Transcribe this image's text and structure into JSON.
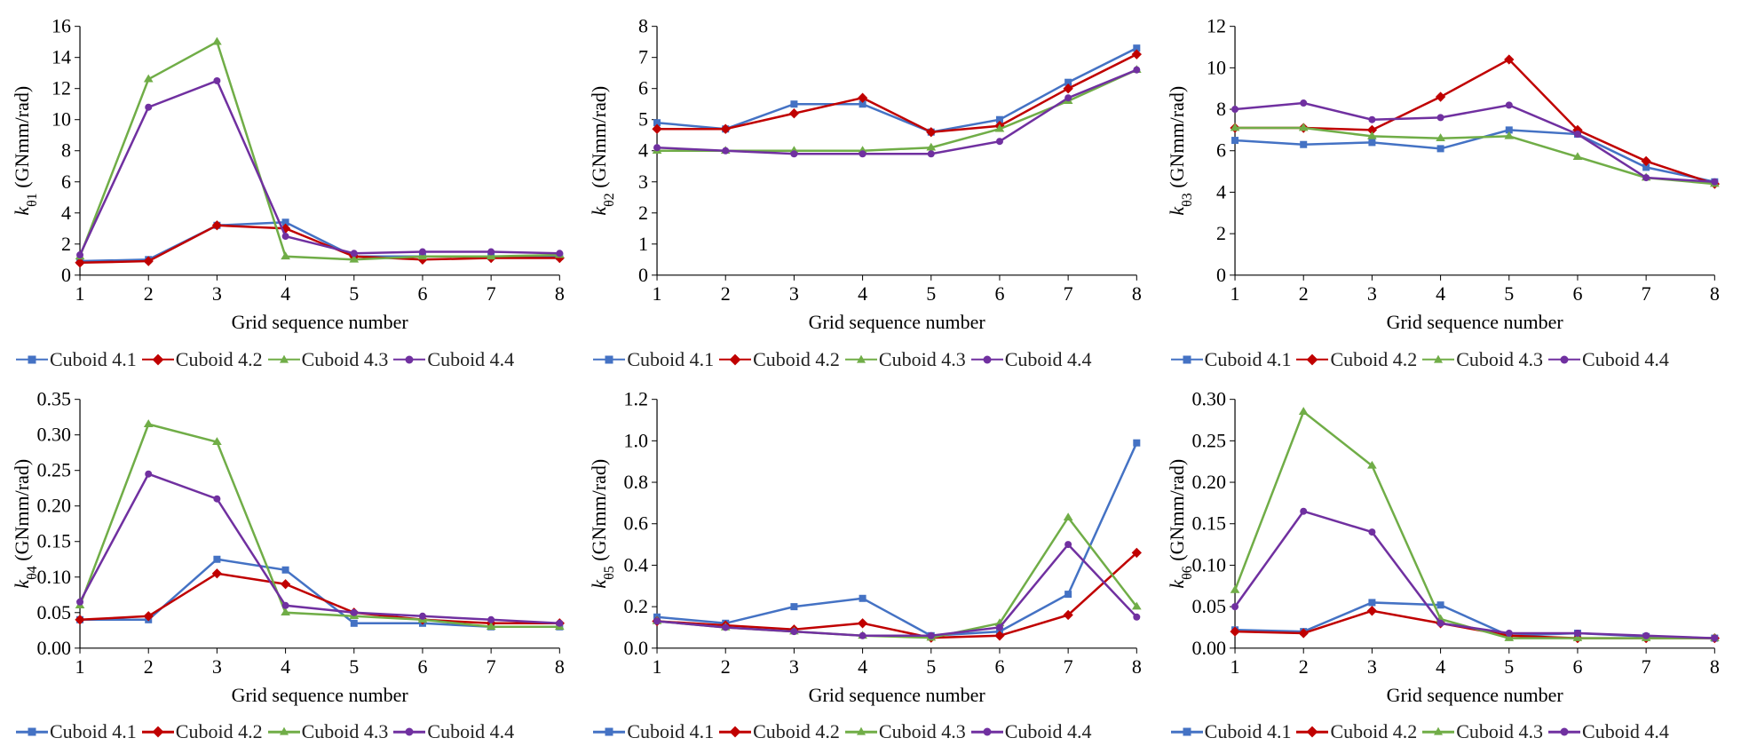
{
  "global": {
    "background_color": "#ffffff",
    "font_family": "Times New Roman",
    "axis_fontsize": 22,
    "tick_fontsize": 22,
    "legend_fontsize": 22,
    "line_width": 2.5,
    "marker_size": 8,
    "axis_color": "#000000",
    "tick_length": 6,
    "x_label": "Grid sequence number",
    "x_values": [
      1,
      2,
      3,
      4,
      5,
      6,
      7,
      8
    ],
    "series_meta": [
      {
        "key": "c41",
        "label": "Cuboid 4.1",
        "color": "#4472c4",
        "marker": "square"
      },
      {
        "key": "c42",
        "label": "Cuboid 4.2",
        "color": "#c00000",
        "marker": "diamond"
      },
      {
        "key": "c43",
        "label": "Cuboid 4.3",
        "color": "#70ad47",
        "marker": "triangle"
      },
      {
        "key": "c44",
        "label": "Cuboid 4.4",
        "color": "#7030a0",
        "marker": "circle"
      }
    ]
  },
  "panels": [
    {
      "id": "p01",
      "type": "line",
      "ylabel_html": "<tspan font-style='italic'>k</tspan><tspan baseline-shift='sub' font-size='16'>θ1</tspan>  (GNmm/rad)",
      "ylim": [
        0,
        16
      ],
      "ytick_step": 2,
      "data": {
        "c41": [
          0.9,
          1.0,
          3.2,
          3.4,
          1.2,
          1.2,
          1.2,
          1.2
        ],
        "c42": [
          0.8,
          0.9,
          3.2,
          3.0,
          1.2,
          1.0,
          1.1,
          1.1
        ],
        "c43": [
          1.2,
          12.6,
          15.0,
          1.2,
          1.0,
          1.2,
          1.2,
          1.3
        ],
        "c44": [
          1.3,
          10.8,
          12.5,
          2.5,
          1.4,
          1.5,
          1.5,
          1.4
        ]
      }
    },
    {
      "id": "p02",
      "type": "line",
      "ylabel_html": "<tspan font-style='italic'>k</tspan><tspan baseline-shift='sub' font-size='16'>θ2</tspan>  (GNmm/rad)",
      "ylim": [
        0,
        8
      ],
      "ytick_step": 1,
      "data": {
        "c41": [
          4.9,
          4.7,
          5.5,
          5.5,
          4.6,
          5.0,
          6.2,
          7.3
        ],
        "c42": [
          4.7,
          4.7,
          5.2,
          5.7,
          4.6,
          4.8,
          6.0,
          7.1
        ],
        "c43": [
          4.0,
          4.0,
          4.0,
          4.0,
          4.1,
          4.7,
          5.6,
          6.6
        ],
        "c44": [
          4.1,
          4.0,
          3.9,
          3.9,
          3.9,
          4.3,
          5.7,
          6.6
        ]
      }
    },
    {
      "id": "p03",
      "type": "line",
      "ylabel_html": "<tspan font-style='italic'>k</tspan><tspan baseline-shift='sub' font-size='16'>θ3</tspan>  (GNmm/rad)",
      "ylim": [
        0,
        12
      ],
      "ytick_step": 2,
      "data": {
        "c41": [
          6.5,
          6.3,
          6.4,
          6.1,
          7.0,
          6.8,
          5.2,
          4.5
        ],
        "c42": [
          7.1,
          7.1,
          7.0,
          8.6,
          10.4,
          7.0,
          5.5,
          4.4
        ],
        "c43": [
          7.1,
          7.1,
          6.7,
          6.6,
          6.7,
          5.7,
          4.7,
          4.4
        ],
        "c44": [
          8.0,
          8.3,
          7.5,
          7.6,
          8.2,
          6.8,
          4.7,
          4.5
        ]
      }
    },
    {
      "id": "p04",
      "type": "line",
      "ylabel_html": "<tspan font-style='italic'>k</tspan><tspan baseline-shift='sub' font-size='16'>θ4</tspan>  (GNmm/rad)",
      "ylim": [
        0,
        0.35
      ],
      "ytick_step": 0.05,
      "data": {
        "c41": [
          0.04,
          0.04,
          0.125,
          0.11,
          0.035,
          0.035,
          0.03,
          0.03
        ],
        "c42": [
          0.04,
          0.045,
          0.105,
          0.09,
          0.05,
          0.04,
          0.035,
          0.035
        ],
        "c43": [
          0.06,
          0.315,
          0.29,
          0.05,
          0.045,
          0.04,
          0.03,
          0.03
        ],
        "c44": [
          0.065,
          0.245,
          0.21,
          0.06,
          0.05,
          0.045,
          0.04,
          0.035
        ]
      }
    },
    {
      "id": "p05",
      "type": "line",
      "ylabel_html": "<tspan font-style='italic'>k</tspan><tspan baseline-shift='sub' font-size='16'>θ5</tspan>  (GNmm/rad)",
      "ylim": [
        0,
        1.2
      ],
      "ytick_step": 0.2,
      "data": {
        "c41": [
          0.15,
          0.12,
          0.2,
          0.24,
          0.06,
          0.08,
          0.26,
          0.99
        ],
        "c42": [
          0.13,
          0.11,
          0.09,
          0.12,
          0.05,
          0.06,
          0.16,
          0.46
        ],
        "c43": [
          0.13,
          0.1,
          0.08,
          0.06,
          0.05,
          0.12,
          0.63,
          0.2
        ],
        "c44": [
          0.13,
          0.1,
          0.08,
          0.06,
          0.06,
          0.1,
          0.5,
          0.15
        ]
      }
    },
    {
      "id": "p06",
      "type": "line",
      "ylabel_html": "<tspan font-style='italic'>k</tspan><tspan baseline-shift='sub' font-size='16'>θ6</tspan>  (GNmm/rad)",
      "ylim": [
        0,
        0.3
      ],
      "ytick_step": 0.05,
      "data": {
        "c41": [
          0.022,
          0.02,
          0.055,
          0.052,
          0.015,
          0.018,
          0.014,
          0.012
        ],
        "c42": [
          0.02,
          0.018,
          0.045,
          0.03,
          0.015,
          0.012,
          0.012,
          0.012
        ],
        "c43": [
          0.07,
          0.285,
          0.22,
          0.035,
          0.012,
          0.012,
          0.012,
          0.012
        ],
        "c44": [
          0.05,
          0.165,
          0.14,
          0.03,
          0.018,
          0.018,
          0.015,
          0.012
        ]
      }
    }
  ]
}
